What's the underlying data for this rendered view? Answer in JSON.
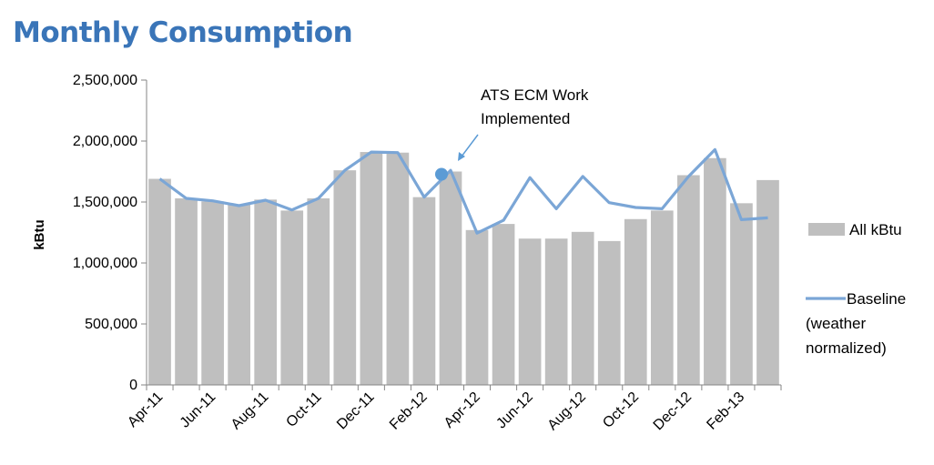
{
  "title": "Monthly Consumption",
  "colors": {
    "title": "#3a75b8",
    "bars": "#bfbfbf",
    "baseline": "#7ba6d6",
    "marker": "#5b9bd5"
  },
  "chart_data": {
    "type": "bar",
    "title": "Monthly Consumption",
    "xlabel": "",
    "ylabel": "kBtu",
    "ylim": [
      0,
      2500000
    ],
    "yticks": [
      0,
      500000,
      1000000,
      1500000,
      2000000,
      2500000
    ],
    "ytick_labels": [
      "0",
      "500,000",
      "1,000,000",
      "1,500,000",
      "2,000,000",
      "2,500,000"
    ],
    "categories": [
      "Apr-11",
      "May-11",
      "Jun-11",
      "Jul-11",
      "Aug-11",
      "Sep-11",
      "Oct-11",
      "Nov-11",
      "Dec-11",
      "Jan-12",
      "Feb-12",
      "Mar-12",
      "Apr-12",
      "May-12",
      "Jun-12",
      "Jul-12",
      "Aug-12",
      "Sep-12",
      "Oct-12",
      "Nov-12",
      "Dec-12",
      "Jan-13",
      "Feb-13",
      "Mar-13"
    ],
    "xtick_labels": [
      "Apr-11",
      "Jun-11",
      "Aug-11",
      "Oct-11",
      "Dec-11",
      "Feb-12",
      "Apr-12",
      "Jun-12",
      "Aug-12",
      "Oct-12",
      "Dec-12",
      "Feb-13"
    ],
    "series": [
      {
        "name": "All kBtu",
        "kind": "bar",
        "values": [
          1690000,
          1530000,
          1505000,
          1480000,
          1520000,
          1430000,
          1530000,
          1760000,
          1910000,
          1905000,
          1540000,
          1750000,
          1270000,
          1320000,
          1200000,
          1200000,
          1255000,
          1180000,
          1360000,
          1430000,
          1720000,
          1860000,
          1490000,
          1680000
        ]
      },
      {
        "name": "Baseline (weather normalized)",
        "kind": "line",
        "values": [
          1690000,
          1530000,
          1510000,
          1470000,
          1515000,
          1435000,
          1530000,
          1760000,
          1910000,
          1905000,
          1540000,
          1760000,
          1245000,
          1350000,
          1700000,
          1445000,
          1710000,
          1495000,
          1455000,
          1445000,
          1710000,
          1930000,
          1355000,
          1370000
        ]
      }
    ],
    "legend": {
      "placement": "right",
      "bar_label": "All kBtu",
      "line_label_1": "Baseline",
      "line_label_2": "(weather",
      "line_label_3": "normalized)"
    },
    "annotation": {
      "line1": "ATS ECM Work",
      "line2": "Implemented",
      "category": "Mar-12",
      "value": 1750000
    },
    "grid": false
  }
}
